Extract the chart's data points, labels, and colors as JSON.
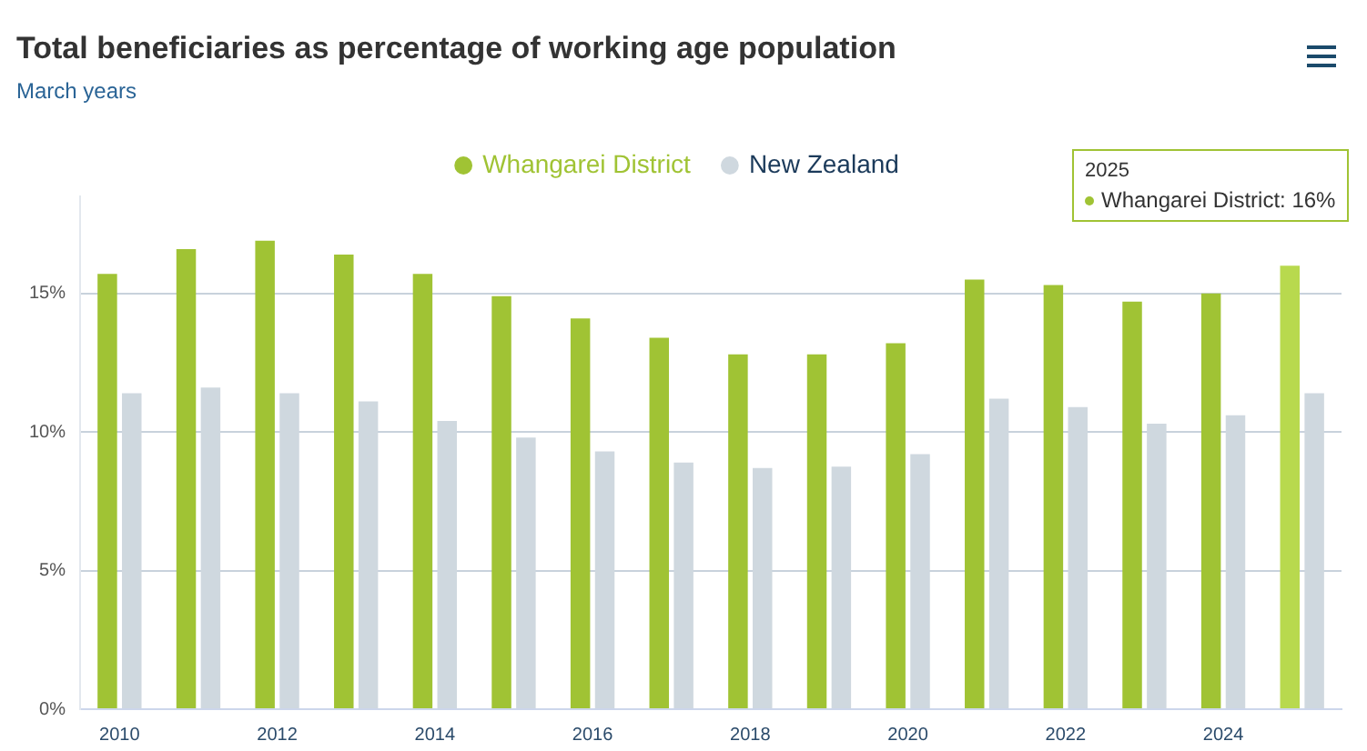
{
  "chart_data": {
    "type": "bar",
    "title": "Total beneficiaries as percentage of working age population",
    "subtitle": "March years",
    "categories": [
      "2010",
      null,
      "2012",
      null,
      "2014",
      null,
      "2016",
      null,
      "2018",
      null,
      "2020",
      null,
      "2022",
      null,
      "2024",
      null
    ],
    "series": [
      {
        "name": "Whangarei District",
        "color": "#a0c334",
        "colors": [
          "#a0c334",
          "#a0c334",
          "#a0c334",
          "#a0c334",
          "#a0c334",
          "#a0c334",
          "#a0c334",
          "#a0c334",
          "#a0c334",
          "#a0c334",
          "#a0c334",
          "#a0c334",
          "#a0c334",
          "#a0c334",
          "#a0c334",
          "#b8d94e"
        ],
        "values": [
          15.7,
          16.6,
          16.9,
          16.4,
          15.7,
          14.9,
          14.1,
          13.4,
          12.8,
          12.8,
          13.2,
          15.5,
          15.3,
          14.7,
          15.0,
          16
        ]
      },
      {
        "name": "New Zealand",
        "color": "#cfd8df",
        "values": [
          11.4,
          11.6,
          11.4,
          11.1,
          10.4,
          9.8,
          9.3,
          8.9,
          8.7,
          8.75,
          9.2,
          11.2,
          10.9,
          10.3,
          10.6,
          11.4
        ]
      }
    ],
    "ylim": [
      0,
      18.5
    ],
    "yticks": [
      {
        "value": 0,
        "label": "0%"
      },
      {
        "value": 5,
        "label": "5%"
      },
      {
        "value": 10,
        "label": "10%"
      },
      {
        "value": 15,
        "label": "15%"
      }
    ],
    "grid": "y",
    "legend": "top",
    "annotations": [
      "2025",
      "Whangarei District: 16%"
    ]
  }
}
